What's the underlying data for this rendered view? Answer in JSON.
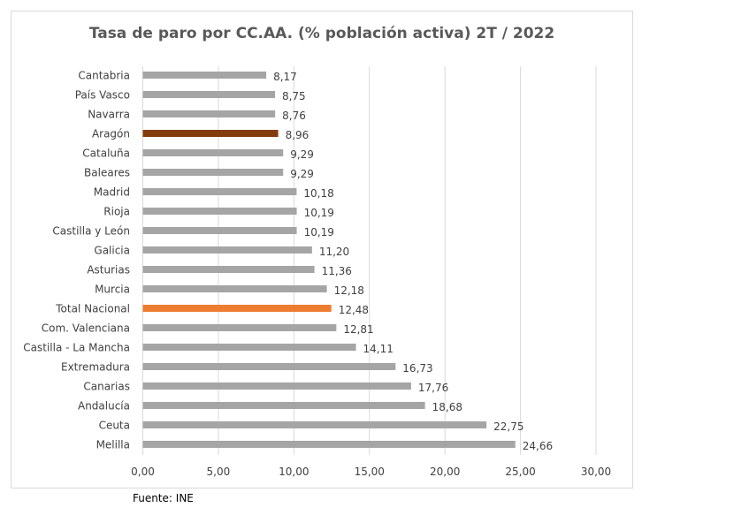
{
  "chart_data": {
    "type": "bar",
    "orientation": "horizontal",
    "title": "Tasa de paro por CC.AA. (% población activa) 2T / 2022",
    "categories": [
      "Cantabria",
      "País Vasco",
      "Navarra",
      "Aragón",
      "Cataluña",
      "Baleares",
      "Madrid",
      "Rioja",
      "Castilla y León",
      "Galicia",
      "Asturias",
      "Murcia",
      "Total Nacional",
      "Com. Valenciana",
      "Castilla - La Mancha",
      "Extremadura",
      "Canarias",
      "Andalucía",
      "Ceuta",
      "Melilla"
    ],
    "values": [
      8.17,
      8.75,
      8.76,
      8.96,
      9.29,
      9.29,
      10.18,
      10.19,
      10.19,
      11.2,
      11.36,
      12.18,
      12.48,
      12.81,
      14.11,
      16.73,
      17.76,
      18.68,
      22.75,
      24.66
    ],
    "data_labels": [
      "8,17",
      "8,75",
      "8,76",
      "8,96",
      "9,29",
      "9,29",
      "10,18",
      "10,19",
      "10,19",
      "11,20",
      "11,36",
      "12,18",
      "12,48",
      "12,81",
      "14,11",
      "16,73",
      "17,76",
      "18,68",
      "22,75",
      "24,66"
    ],
    "xlim": [
      0,
      30
    ],
    "xticks": [
      0,
      5,
      10,
      15,
      20,
      25,
      30
    ],
    "xtick_labels": [
      "0,00",
      "5,00",
      "10,00",
      "15,00",
      "20,00",
      "25,00",
      "30,00"
    ],
    "grid": "vertical",
    "legend": "none",
    "colors": {
      "default": "#a5a5a5",
      "Aragón": "#843c0c",
      "Total Nacional": "#ed7d31",
      "grid": "#d9d9d9"
    }
  },
  "source": "Fuente: INE"
}
